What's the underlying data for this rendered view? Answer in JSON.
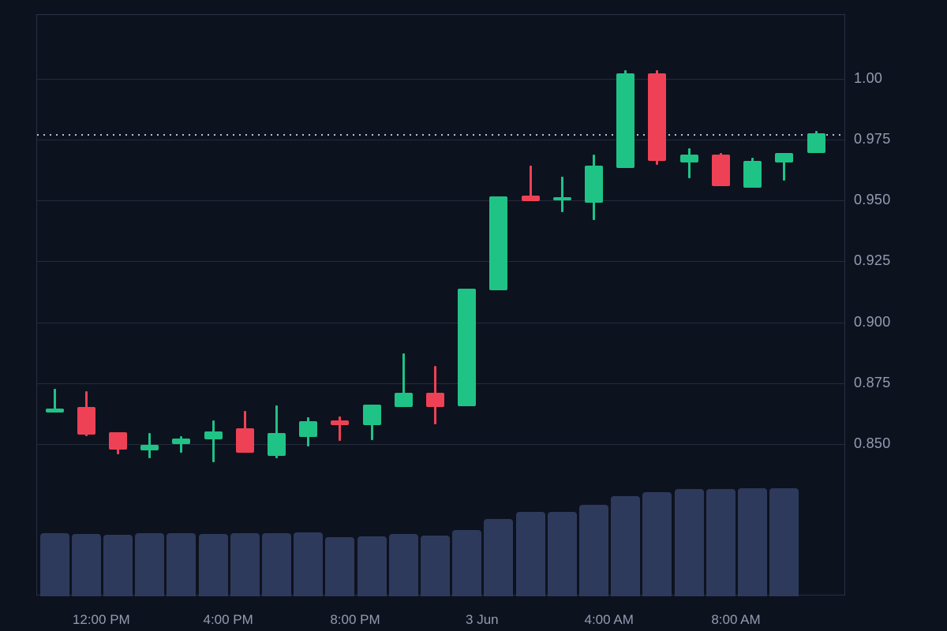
{
  "chart_data": {
    "type": "candlestick",
    "interval": "1h",
    "legend_position": "none",
    "grid": "horizontal-only",
    "y_axis": {
      "side": "right",
      "range": [
        0.7875,
        1.0262
      ],
      "ticks": [
        {
          "label": "1.00",
          "value": 1.0
        },
        {
          "label": "0.975",
          "value": 0.975
        },
        {
          "label": "0.950",
          "value": 0.95
        },
        {
          "label": "0.925",
          "value": 0.925
        },
        {
          "label": "0.900",
          "value": 0.9
        },
        {
          "label": "0.875",
          "value": 0.875
        },
        {
          "label": "0.850",
          "value": 0.85
        }
      ]
    },
    "x_axis": {
      "ticks": [
        {
          "label": "12:00 PM",
          "slot": 1.5
        },
        {
          "label": "4:00 PM",
          "slot": 5.5
        },
        {
          "label": "8:00 PM",
          "slot": 9.5
        },
        {
          "label": "3 Jun",
          "slot": 13.5
        },
        {
          "label": "4:00 AM",
          "slot": 17.5
        },
        {
          "label": "8:00 AM",
          "slot": 21.5
        }
      ]
    },
    "price_line": {
      "value": 0.9768,
      "style": "dotted"
    },
    "volume_units": "relative",
    "candles": [
      {
        "o": 0.863,
        "h": 0.8727,
        "l": 0.863,
        "c": 0.8646,
        "v": 80
      },
      {
        "o": 0.8652,
        "h": 0.8717,
        "l": 0.8532,
        "c": 0.8539,
        "v": 79
      },
      {
        "o": 0.8549,
        "h": 0.8549,
        "l": 0.8458,
        "c": 0.8477,
        "v": 78
      },
      {
        "o": 0.8474,
        "h": 0.8545,
        "l": 0.8442,
        "c": 0.8497,
        "v": 80
      },
      {
        "o": 0.85,
        "h": 0.8532,
        "l": 0.8464,
        "c": 0.8523,
        "v": 80
      },
      {
        "o": 0.852,
        "h": 0.8597,
        "l": 0.8426,
        "c": 0.8552,
        "v": 79
      },
      {
        "o": 0.8565,
        "h": 0.8636,
        "l": 0.8464,
        "c": 0.8464,
        "v": 80
      },
      {
        "o": 0.8451,
        "h": 0.8659,
        "l": 0.8442,
        "c": 0.8545,
        "v": 80
      },
      {
        "o": 0.8529,
        "h": 0.861,
        "l": 0.849,
        "c": 0.8594,
        "v": 81
      },
      {
        "o": 0.8597,
        "h": 0.8613,
        "l": 0.8513,
        "c": 0.8578,
        "v": 75
      },
      {
        "o": 0.8578,
        "h": 0.8662,
        "l": 0.8516,
        "c": 0.8662,
        "v": 76
      },
      {
        "o": 0.8652,
        "h": 0.8872,
        "l": 0.8652,
        "c": 0.871,
        "v": 79
      },
      {
        "o": 0.871,
        "h": 0.882,
        "l": 0.8581,
        "c": 0.8652,
        "v": 77
      },
      {
        "o": 0.8655,
        "h": 0.9138,
        "l": 0.8655,
        "c": 0.9138,
        "v": 84
      },
      {
        "o": 0.9131,
        "h": 0.9517,
        "l": 0.9131,
        "c": 0.9517,
        "v": 98
      },
      {
        "o": 0.952,
        "h": 0.9643,
        "l": 0.9497,
        "c": 0.9497,
        "v": 107
      },
      {
        "o": 0.95,
        "h": 0.9598,
        "l": 0.9452,
        "c": 0.9513,
        "v": 107
      },
      {
        "o": 0.9491,
        "h": 0.9688,
        "l": 0.942,
        "c": 0.9643,
        "v": 116
      },
      {
        "o": 0.9633,
        "h": 1.0035,
        "l": 0.9633,
        "c": 1.0022,
        "v": 127
      },
      {
        "o": 1.0022,
        "h": 1.0035,
        "l": 0.9646,
        "c": 0.9662,
        "v": 132
      },
      {
        "o": 0.9656,
        "h": 0.9714,
        "l": 0.9591,
        "c": 0.9688,
        "v": 136
      },
      {
        "o": 0.9688,
        "h": 0.9694,
        "l": 0.9559,
        "c": 0.9559,
        "v": 136
      },
      {
        "o": 0.9554,
        "h": 0.9675,
        "l": 0.9554,
        "c": 0.9662,
        "v": 137
      },
      {
        "o": 0.9656,
        "h": 0.9694,
        "l": 0.958,
        "c": 0.9694,
        "v": 137
      },
      {
        "o": 0.9695,
        "h": 0.9786,
        "l": 0.9695,
        "c": 0.9776,
        "v": 0
      }
    ],
    "colors": {
      "up": "#1fc386",
      "down": "#ef4155",
      "volume": "#2e3a5c",
      "background": "#0d121f",
      "grid": "#242b3c",
      "border": "#2a3144",
      "label": "#939cb0",
      "price_line": "#b8bfce"
    }
  }
}
